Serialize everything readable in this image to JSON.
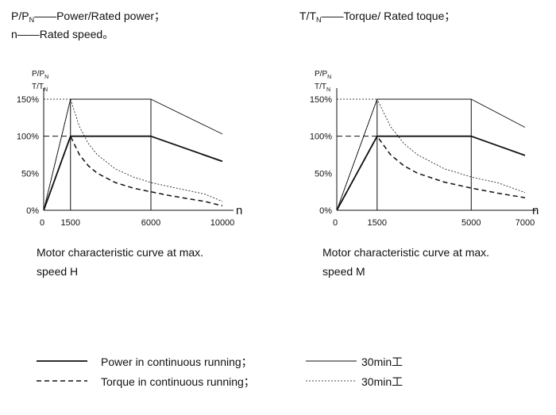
{
  "top_legend": {
    "pp_main": "P/P",
    "pp_sub": "N",
    "pp_desc": "——Power/Rated power；",
    "n_main": "n",
    "n_desc": "——Rated speed。",
    "tt_main": "T/T",
    "tt_sub": "N",
    "tt_desc": "——Torque/ Rated toque；"
  },
  "captions": {
    "h_line1": "Motor characteristic curve at max.",
    "h_line2": "speed H",
    "m_line1": "Motor characteristic curve at max.",
    "m_line2": "speed M"
  },
  "legend": {
    "power_continuous": "Power in continuous running；",
    "torque_continuous": "Torque in continuous running；",
    "power_30min": "30min工",
    "torque_30min": "30min工"
  },
  "chart_data": [
    {
      "type": "line",
      "title": "",
      "ylabel_line1": "P/P",
      "ylabel_line1_sub": "N",
      "ylabel_line2": "T/T",
      "ylabel_line2_sub": "N",
      "xlabel": "n",
      "x_ticks": [
        0,
        1500,
        6000,
        10000
      ],
      "x_tick_labels": [
        "0",
        "1500",
        "6000",
        "10000"
      ],
      "y_ticks": [
        0,
        50,
        100,
        150
      ],
      "y_tick_labels": [
        "0%",
        "50%",
        "100%",
        "150%"
      ],
      "xlim": [
        0,
        10000
      ],
      "ylim": [
        0,
        150
      ],
      "series": [
        {
          "style": "power-continuous",
          "x": [
            0,
            1500,
            6000,
            10000
          ],
          "y": [
            0,
            100,
            100,
            66
          ]
        },
        {
          "style": "power-30min",
          "x": [
            0,
            1500,
            6000,
            10000
          ],
          "y": [
            0,
            150,
            150,
            103
          ]
        },
        {
          "style": "torque-continuous",
          "x": [
            0,
            1500,
            2000,
            2500,
            3000,
            4000,
            5000,
            6000,
            7000,
            8000,
            9000,
            10000
          ],
          "y": [
            0,
            100,
            75,
            60,
            50,
            37.5,
            30,
            25,
            20,
            16,
            12,
            6
          ]
        },
        {
          "style": "torque-30min",
          "x": [
            0,
            1500,
            2000,
            2500,
            3000,
            4000,
            5000,
            6000,
            7000,
            8000,
            9000,
            10000
          ],
          "y": [
            0,
            150,
            113,
            90,
            75,
            56,
            45,
            37.5,
            32,
            27,
            22,
            12
          ]
        }
      ]
    },
    {
      "type": "line",
      "title": "",
      "ylabel_line1": "P/P",
      "ylabel_line1_sub": "N",
      "ylabel_line2": "T/T",
      "ylabel_line2_sub": "N",
      "xlabel": "n",
      "x_ticks": [
        0,
        1500,
        5000,
        7000
      ],
      "x_tick_labels": [
        "0",
        "1500",
        "5000",
        "7000"
      ],
      "y_ticks": [
        0,
        50,
        100,
        150
      ],
      "y_tick_labels": [
        "0%",
        "50%",
        "100%",
        "150%"
      ],
      "xlim": [
        0,
        7000
      ],
      "ylim": [
        0,
        150
      ],
      "series": [
        {
          "style": "power-continuous",
          "x": [
            0,
            1500,
            5000,
            7000
          ],
          "y": [
            0,
            100,
            100,
            74
          ]
        },
        {
          "style": "power-30min",
          "x": [
            0,
            1500,
            5000,
            7000
          ],
          "y": [
            0,
            150,
            150,
            112
          ]
        },
        {
          "style": "torque-continuous",
          "x": [
            0,
            1500,
            2000,
            2500,
            3000,
            4000,
            5000,
            6000,
            7000
          ],
          "y": [
            0,
            100,
            75,
            60,
            50,
            38,
            30,
            23,
            17
          ]
        },
        {
          "style": "torque-30min",
          "x": [
            0,
            1500,
            2000,
            2500,
            3000,
            4000,
            5000,
            6000,
            7000
          ],
          "y": [
            0,
            150,
            113,
            90,
            75,
            56,
            45,
            37,
            24
          ]
        }
      ]
    }
  ]
}
